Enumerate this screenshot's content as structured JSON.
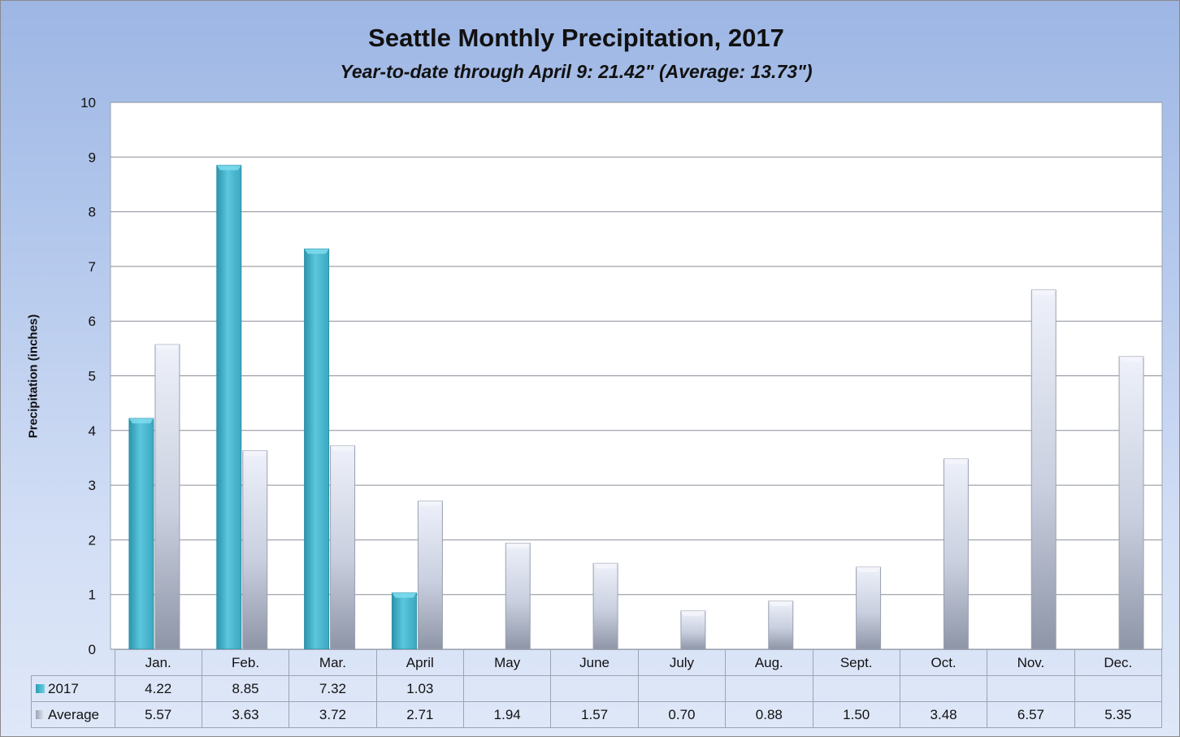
{
  "chart_data": {
    "type": "bar",
    "title": "Seattle Monthly Precipitation, 2017",
    "subtitle": "Year-to-date through April 9: 21.42\" (Average: 13.73\")",
    "ylabel": "Precipitation (inches)",
    "xlabel": "",
    "ylim": [
      0,
      10
    ],
    "yticks": [
      "0",
      "1",
      "2",
      "3",
      "4",
      "5",
      "6",
      "7",
      "8",
      "9",
      "10"
    ],
    "grid": true,
    "legend": "data-table",
    "categories": [
      "Jan.",
      "Feb.",
      "Mar.",
      "April",
      "May",
      "June",
      "July",
      "Aug.",
      "Sept.",
      "Oct.",
      "Nov.",
      "Dec."
    ],
    "series": [
      {
        "name": "2017",
        "color": "#4bb8cf",
        "values": [
          4.22,
          8.85,
          7.32,
          1.03,
          null,
          null,
          null,
          null,
          null,
          null,
          null,
          null
        ],
        "labels": [
          "4.22",
          "8.85",
          "7.32",
          "1.03",
          "",
          "",
          "",
          "",
          "",
          "",
          "",
          ""
        ]
      },
      {
        "name": "Average",
        "color": "#c9d1e6",
        "values": [
          5.57,
          3.63,
          3.72,
          2.71,
          1.94,
          1.57,
          0.7,
          0.88,
          1.5,
          3.48,
          6.57,
          5.35
        ],
        "labels": [
          "5.57",
          "3.63",
          "3.72",
          "2.71",
          "1.94",
          "1.57",
          "0.70",
          "0.88",
          "1.50",
          "3.48",
          "6.57",
          "5.35"
        ]
      }
    ]
  }
}
